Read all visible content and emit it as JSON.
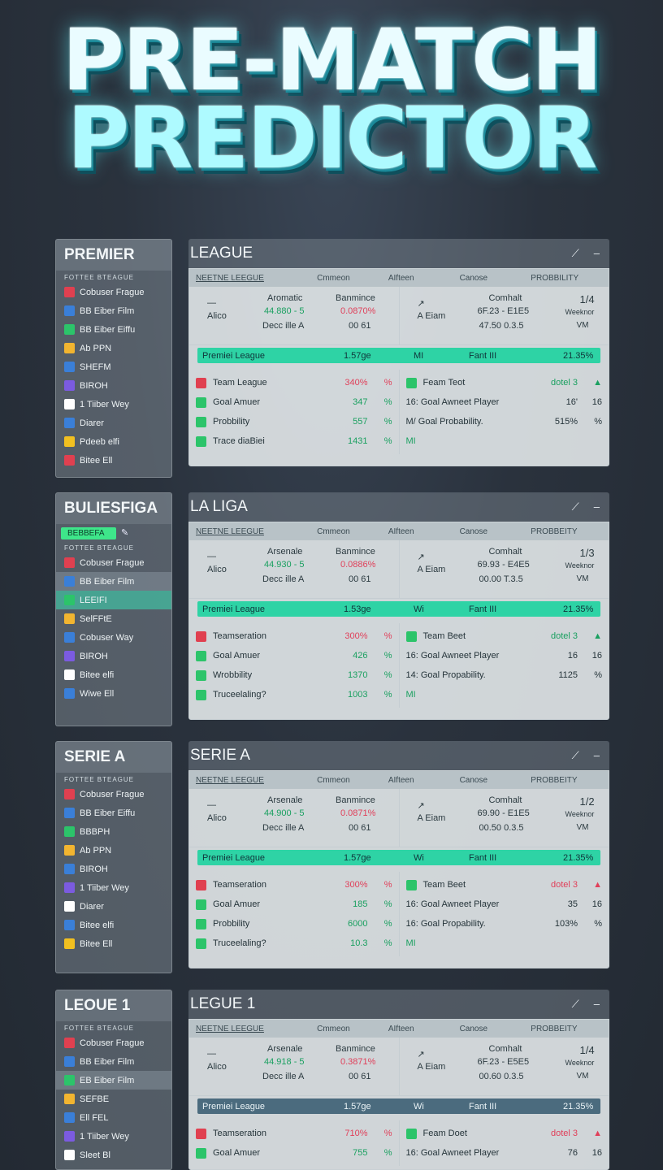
{
  "hero": {
    "line1": "PRE-MATCH",
    "line2": "PREDICTOR"
  },
  "sections": [
    {
      "side_title": "PREMIER",
      "side_sub": "FOTTEE BTEAGUE",
      "side_items": [
        "Cobuser Frague",
        "BB Eiber Film",
        "BB Eiber Eiffu",
        "Ab PPN",
        "SHEFM",
        "BIROH",
        "1 Tiiber Wey",
        "Diarer",
        "Pdeeb elfi",
        "Bitee Ell"
      ],
      "panel_title": "LEAGUE",
      "cols": [
        "NEETNE LEEGUE",
        "Cmmeon",
        "AIfteen",
        "Canose",
        "PROBBILITY"
      ],
      "m_left": {
        "team": "Alico",
        "home": "Aromatic",
        "odds": "44.880 - 5",
        "draw": "Decc ille A",
        "mid": "Banmince",
        "pct": "0.0870%",
        "x": "00 61"
      },
      "m_right": {
        "team": "A Eiam",
        "label": "Comhalt",
        "v1": "6F.23 - E1E5",
        "v2": "47.50 0.3.5",
        "frac": "1/4",
        "sub": "Weeknor",
        "vm": "VM"
      },
      "bar": {
        "a": "Premiei League",
        "b": "1.57ge",
        "c": "MI",
        "d": "Fant III",
        "e": "21.35%"
      },
      "bar_dark": false,
      "stats_left": [
        {
          "l": "Team League",
          "v1": "340%",
          "v2": "%",
          "c": "red"
        },
        {
          "l": "Goal Amuer",
          "v1": "347",
          "v2": "%",
          "c": "green"
        },
        {
          "l": "Probbility",
          "v1": "557",
          "v2": "%",
          "c": "green"
        },
        {
          "l": "Trace diaBiei",
          "v1": "1431",
          "v2": "%",
          "c": "green"
        }
      ],
      "stats_right": [
        {
          "l": "Feam Teot",
          "v1": "dotel 3",
          "v2": "▲",
          "c": "green"
        },
        {
          "l": "16: Goal Awneet Player",
          "v1": "16'",
          "v2": "16",
          "c": ""
        },
        {
          "l": "M/ Goal Probability.",
          "v1": "515%",
          "v2": "%",
          "c": ""
        },
        {
          "l": "MI",
          "v1": "",
          "v2": "",
          "c": "green"
        }
      ]
    },
    {
      "side_title": "BULIESFIGA",
      "side_sub": "FOTTEE BTEAGUE",
      "side_pill": "BEBBEFA",
      "side_items": [
        "Cobuser Frague",
        "BB Eiber Film",
        "LEEIFI",
        "SelFFtE",
        "Cobuser Way",
        "BIROH",
        "Bitee elfi",
        "Wiwe Ell"
      ],
      "panel_title": "LA LIGA",
      "cols": [
        "NEETNE LEEGUE",
        "Cmmeon",
        "AIfteen",
        "Canose",
        "PROBBEITY"
      ],
      "m_left": {
        "team": "Alico",
        "home": "Arsenale",
        "odds": "44.930 - 5",
        "draw": "Decc ille A",
        "mid": "Banmince",
        "pct": "0.0886%",
        "x": "00 61"
      },
      "m_right": {
        "team": "A Eiam",
        "label": "Comhalt",
        "v1": "69.93 - E4E5",
        "v2": "00.00 T.3.5",
        "frac": "1/3",
        "sub": "Weeknor",
        "vm": "VM"
      },
      "bar": {
        "a": "Premiei League",
        "b": "1.53ge",
        "c": "Wi",
        "d": "Fant III",
        "e": "21.35%"
      },
      "bar_dark": false,
      "stats_left": [
        {
          "l": "Teamseration",
          "v1": "300%",
          "v2": "%",
          "c": "red"
        },
        {
          "l": "Goal Amuer",
          "v1": "426",
          "v2": "%",
          "c": "green"
        },
        {
          "l": "Wrobbility",
          "v1": "1370",
          "v2": "%",
          "c": "green"
        },
        {
          "l": "Truceelaling?",
          "v1": "1003",
          "v2": "%",
          "c": "green"
        }
      ],
      "stats_right": [
        {
          "l": "Team Beet",
          "v1": "dotel 3",
          "v2": "▲",
          "c": "green"
        },
        {
          "l": "16: Goal Awneet Player",
          "v1": "16",
          "v2": "16",
          "c": ""
        },
        {
          "l": "14: Goal Propability.",
          "v1": "1125",
          "v2": "%",
          "c": ""
        },
        {
          "l": "MI",
          "v1": "",
          "v2": "",
          "c": "green"
        }
      ]
    },
    {
      "side_title": "SERIE A",
      "side_sub": "FOTTEE BTEAGUE",
      "side_items": [
        "Cobuser Frague",
        "BB Eiber Eiffu",
        "BBBPH",
        "Ab PPN",
        "BIROH",
        "1 Tiiber Wey",
        "Diarer",
        "Bitee elfi",
        "Bitee Ell"
      ],
      "panel_title": "SERIE A",
      "cols": [
        "NEETNE LEEGUE",
        "Cmmeon",
        "AIfteen",
        "Canose",
        "PROBBEITY"
      ],
      "m_left": {
        "team": "Alico",
        "home": "Arsenale",
        "odds": "44.900 - 5",
        "draw": "Decc ille A",
        "mid": "Banmince",
        "pct": "0.0871%",
        "x": "00 61"
      },
      "m_right": {
        "team": "A Eiam",
        "label": "Comhalt",
        "v1": "69.90 - E1E5",
        "v2": "00.50 0.3.5",
        "frac": "1/2",
        "sub": "Weeknor",
        "vm": "VM"
      },
      "bar": {
        "a": "Premiei League",
        "b": "1.57ge",
        "c": "Wi",
        "d": "Fant III",
        "e": "21.35%"
      },
      "bar_dark": false,
      "stats_left": [
        {
          "l": "Teamseration",
          "v1": "300%",
          "v2": "%",
          "c": "red"
        },
        {
          "l": "Goal Amuer",
          "v1": "185",
          "v2": "%",
          "c": "green"
        },
        {
          "l": "Probbility",
          "v1": "6000",
          "v2": "%",
          "c": "green"
        },
        {
          "l": "Truceelaling?",
          "v1": "10.3",
          "v2": "%",
          "c": "green"
        }
      ],
      "stats_right": [
        {
          "l": "Team Beet",
          "v1": "dotel 3",
          "v2": "▲",
          "c": "red"
        },
        {
          "l": "16: Goal Awneet Player",
          "v1": "35",
          "v2": "16",
          "c": ""
        },
        {
          "l": "16: Goal Propability.",
          "v1": "103%",
          "v2": "%",
          "c": ""
        },
        {
          "l": "MI",
          "v1": "",
          "v2": "",
          "c": "green"
        }
      ]
    },
    {
      "side_title": "LEOUE 1",
      "side_sub": "FOTTEE BTEAGUE",
      "side_items": [
        "Cobuser Frague",
        "BB Eiber Film",
        "EB Eiber Film",
        "SEFBE",
        "Ell FEL",
        "1 Tiiber Wey",
        "Sleet Bl"
      ],
      "panel_title": "LEGUE 1",
      "cols": [
        "NEETNE LEEGUE",
        "Cmmeon",
        "AIfteen",
        "Canose",
        "PROBBEITY"
      ],
      "m_left": {
        "team": "Alico",
        "home": "Arsenale",
        "odds": "44.918 - 5",
        "draw": "Decc ille A",
        "mid": "Banmince",
        "pct": "0.3871%",
        "x": "00 61"
      },
      "m_right": {
        "team": "A Eiam",
        "label": "Comhalt",
        "v1": "6F.23 - E5E5",
        "v2": "00.60 0.3.5",
        "frac": "1/4",
        "sub": "Weeknor",
        "vm": "VM"
      },
      "bar": {
        "a": "Premiei League",
        "b": "1.57ge",
        "c": "Wi",
        "d": "Fant III",
        "e": "21.35%"
      },
      "bar_dark": true,
      "stats_left": [
        {
          "l": "Teamseration",
          "v1": "710%",
          "v2": "%",
          "c": "red"
        },
        {
          "l": "Goal Amuer",
          "v1": "755",
          "v2": "%",
          "c": "green"
        }
      ],
      "stats_right": [
        {
          "l": "Feam Doet",
          "v1": "dotel 3",
          "v2": "▲",
          "c": "red"
        },
        {
          "l": "16: Goal Awneet Player",
          "v1": "76",
          "v2": "16",
          "c": ""
        }
      ]
    }
  ],
  "colors": {
    "accent": "#2ed3a5",
    "positive": "#1aa060",
    "negative": "#e0405a"
  }
}
